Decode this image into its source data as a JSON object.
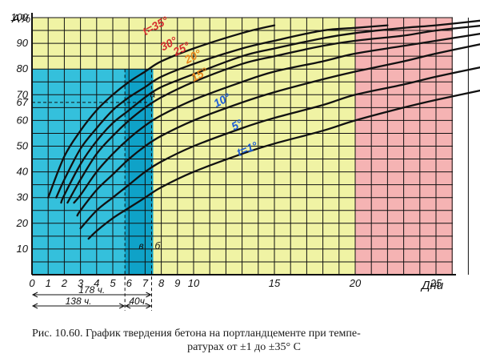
{
  "chart_data": {
    "type": "line",
    "ylabel": "A%",
    "xlabel": "Дни",
    "xlim": [
      0,
      28
    ],
    "ylim": [
      0,
      100
    ],
    "x_ticks": [
      "0",
      "1",
      "2",
      "3",
      "4",
      "5",
      "6",
      "7",
      "8",
      "9",
      "10",
      "15",
      "20",
      "25"
    ],
    "y_ticks": [
      "10",
      "20",
      "30",
      "40",
      "50",
      "60",
      "67",
      "70",
      "80",
      "90",
      "100"
    ],
    "zones": {
      "blue": [
        0,
        7.5
      ],
      "yellow": [
        7.5,
        20
      ],
      "pink": [
        20,
        28
      ],
      "blue_height": 80,
      "colors": {
        "blue": "#34c0dc",
        "blue_dark": "#0fa2c8",
        "yellow": "#f0f3a4",
        "pink": "#f5b3b3",
        "grid": "#111111"
      }
    },
    "series": [
      {
        "name": "t=35°",
        "label_color": "#d63030",
        "x": [
          1,
          2,
          3,
          4,
          5,
          6,
          7,
          8,
          10,
          13,
          15
        ],
        "y": [
          30,
          46,
          56,
          64,
          70,
          75,
          79,
          83,
          88,
          94,
          97
        ]
      },
      {
        "name": "30°",
        "label_color": "#d63030",
        "x": [
          1.5,
          2,
          3,
          4,
          5,
          6,
          7,
          8,
          10,
          13,
          15,
          18,
          20,
          22
        ],
        "y": [
          30,
          37,
          49,
          57,
          64,
          69,
          73,
          77,
          82,
          88,
          91,
          95,
          96,
          97
        ]
      },
      {
        "name": "25°",
        "label_color": "#d63030",
        "x": [
          1.8,
          2,
          3,
          4,
          5,
          6,
          7,
          8,
          10,
          13,
          15,
          18,
          20,
          23,
          25,
          28
        ],
        "y": [
          28,
          31,
          43,
          52,
          59,
          64,
          69,
          73,
          78,
          85,
          88,
          92,
          94,
          96,
          97,
          99
        ]
      },
      {
        "name": "20°",
        "label_color": "#e8861c",
        "x": [
          2.2,
          3,
          4,
          5,
          6,
          7,
          8,
          10,
          13,
          15,
          18,
          20,
          23,
          25,
          28
        ],
        "y": [
          28,
          37,
          47,
          54,
          60,
          65,
          69,
          75,
          82,
          85,
          89,
          91,
          93,
          95,
          97
        ]
      },
      {
        "name": "15°",
        "label_color": "#e8861c",
        "x": [
          2.6,
          3,
          4,
          5,
          6,
          7,
          8,
          10,
          13,
          15,
          18,
          20,
          23,
          25,
          28
        ],
        "y": [
          28,
          31,
          40,
          47,
          53,
          58,
          62,
          68,
          75,
          79,
          83,
          86,
          89,
          91,
          94
        ]
      },
      {
        "name": "10°",
        "label_color": "#1f5fd6",
        "x": [
          2.8,
          3,
          4,
          5,
          6,
          7,
          8,
          10,
          13,
          15,
          18,
          20,
          23,
          25,
          28
        ],
        "y": [
          23,
          25,
          33,
          39,
          45,
          50,
          54,
          60,
          67,
          71,
          76,
          79,
          83,
          86,
          90
        ]
      },
      {
        "name": "5°",
        "label_color": "#1f5fd6",
        "x": [
          3,
          4,
          5,
          6,
          7,
          8,
          10,
          13,
          15,
          18,
          20,
          23,
          25,
          28
        ],
        "y": [
          18,
          25,
          30,
          35,
          40,
          44,
          50,
          57,
          61,
          66,
          70,
          74,
          77,
          81
        ]
      },
      {
        "name": "t=1°",
        "label_color": "#1f5fd6",
        "x": [
          3.5,
          4,
          5,
          6,
          7,
          8,
          10,
          13,
          15,
          18,
          20,
          23,
          25,
          28
        ],
        "y": [
          14,
          17,
          22,
          26,
          30,
          34,
          40,
          47,
          51,
          56,
          60,
          65,
          68,
          72
        ]
      }
    ],
    "markers": [
      {
        "text": "a",
        "x": 7.3,
        "y": 69
      },
      {
        "text": "в",
        "x": 6.6,
        "y": 10
      },
      {
        "text": "б",
        "x": 7.6,
        "y": 10
      }
    ],
    "durations": [
      {
        "label": "178 ч.",
        "from": 0,
        "to": 7.4
      },
      {
        "label": "138 ч.",
        "from": 0,
        "to": 5.75
      },
      {
        "label": "40ч.",
        "from": 5.75,
        "to": 7.4
      }
    ]
  },
  "caption": {
    "line1": "Рис. 10.60. График твердения бетона на портландцементе при темпе-",
    "line2": "ратурах от ±1 до ±35° С"
  }
}
